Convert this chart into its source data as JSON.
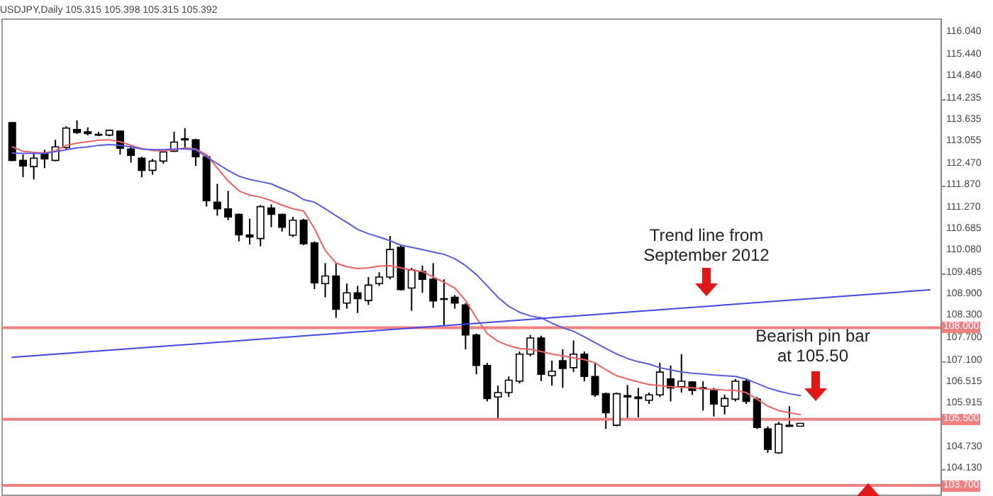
{
  "chart_data": {
    "type": "candlestick",
    "title": "USDJPY,Daily  105.315 105.398 105.315 105.392",
    "categories": [
      null,
      null,
      null,
      null,
      null,
      null,
      null,
      null,
      null,
      null,
      null,
      null,
      null,
      null,
      null,
      null,
      null,
      null,
      null,
      null,
      null,
      null,
      null,
      null,
      null,
      null,
      null,
      null,
      null,
      null,
      null,
      null,
      null,
      null,
      null,
      null,
      null,
      null,
      null,
      null,
      null,
      null,
      null,
      null,
      null,
      null,
      null,
      null,
      null,
      null,
      null,
      null,
      null,
      null,
      null,
      null,
      null,
      null,
      null,
      null,
      null,
      null,
      null,
      null,
      null,
      null,
      null,
      null,
      null,
      null,
      null,
      null,
      null,
      null,
      null,
      null,
      null,
      null,
      null,
      null,
      null,
      null,
      null,
      null,
      null,
      null
    ],
    "ohlc": [
      [
        113.59,
        113.59,
        112.54,
        112.56
      ],
      [
        112.56,
        112.72,
        112.1,
        112.41
      ],
      [
        112.39,
        112.75,
        112.04,
        112.62
      ],
      [
        112.75,
        112.85,
        112.35,
        112.6
      ],
      [
        112.56,
        113.12,
        112.54,
        112.93
      ],
      [
        112.91,
        113.49,
        112.87,
        113.44
      ],
      [
        113.4,
        113.65,
        113.28,
        113.32
      ],
      [
        113.34,
        113.46,
        113.24,
        113.29
      ],
      [
        113.27,
        113.34,
        113.22,
        113.25
      ],
      [
        113.25,
        113.4,
        113.22,
        113.38
      ],
      [
        113.36,
        113.36,
        112.72,
        112.89
      ],
      [
        112.87,
        112.97,
        112.5,
        112.7
      ],
      [
        112.62,
        112.66,
        112.1,
        112.29
      ],
      [
        112.29,
        112.6,
        112.17,
        112.54
      ],
      [
        112.54,
        112.85,
        112.47,
        112.79
      ],
      [
        112.81,
        113.34,
        112.79,
        113.06
      ],
      [
        113.15,
        113.44,
        112.91,
        113.12
      ],
      [
        113.12,
        113.15,
        112.41,
        112.66
      ],
      [
        112.66,
        112.72,
        111.3,
        111.46
      ],
      [
        111.42,
        111.92,
        111.05,
        111.24
      ],
      [
        111.24,
        111.73,
        110.93,
        111.02
      ],
      [
        111.09,
        111.11,
        110.35,
        110.53
      ],
      [
        110.53,
        110.97,
        110.27,
        110.47
      ],
      [
        110.43,
        111.34,
        110.22,
        111.3
      ],
      [
        111.26,
        111.36,
        110.74,
        111.09
      ],
      [
        111.09,
        111.11,
        110.62,
        110.74
      ],
      [
        110.52,
        111.02,
        110.47,
        110.93
      ],
      [
        110.93,
        110.97,
        110.25,
        110.29
      ],
      [
        110.31,
        110.35,
        109.05,
        109.22
      ],
      [
        109.2,
        109.76,
        108.83,
        109.41
      ],
      [
        109.41,
        109.76,
        108.27,
        108.5
      ],
      [
        108.67,
        109.2,
        108.52,
        108.95
      ],
      [
        108.95,
        109.14,
        108.4,
        108.79
      ],
      [
        108.74,
        109.38,
        108.62,
        109.16
      ],
      [
        109.2,
        109.51,
        109.14,
        109.38
      ],
      [
        109.38,
        110.5,
        109.32,
        110.13
      ],
      [
        110.19,
        110.25,
        109.01,
        109.04
      ],
      [
        109.08,
        109.63,
        108.46,
        109.57
      ],
      [
        109.53,
        109.69,
        108.95,
        109.32
      ],
      [
        109.32,
        109.76,
        108.54,
        108.73
      ],
      [
        108.79,
        109.32,
        108.05,
        108.77
      ],
      [
        108.83,
        108.89,
        108.52,
        108.67
      ],
      [
        108.62,
        108.67,
        107.41,
        107.8
      ],
      [
        107.8,
        107.84,
        106.73,
        106.97
      ],
      [
        106.97,
        107.04,
        105.99,
        106.07
      ],
      [
        106.11,
        106.42,
        105.49,
        106.23
      ],
      [
        106.23,
        106.67,
        106.11,
        106.57
      ],
      [
        106.54,
        107.35,
        106.48,
        107.28
      ],
      [
        107.28,
        107.8,
        107.22,
        107.72
      ],
      [
        107.72,
        107.78,
        106.54,
        106.73
      ],
      [
        106.69,
        107.1,
        106.42,
        106.81
      ],
      [
        107.1,
        107.41,
        106.36,
        106.89
      ],
      [
        106.91,
        107.65,
        106.79,
        107.28
      ],
      [
        107.28,
        107.35,
        106.54,
        106.67
      ],
      [
        106.67,
        107.04,
        106.11,
        106.17
      ],
      [
        106.2,
        106.23,
        105.24,
        105.68
      ],
      [
        105.34,
        106.23,
        105.31,
        106.2
      ],
      [
        106.15,
        106.44,
        105.49,
        106.11
      ],
      [
        106.11,
        106.36,
        105.55,
        106.07
      ],
      [
        106.02,
        106.23,
        105.92,
        106.17
      ],
      [
        106.17,
        107.04,
        106.11,
        106.79
      ],
      [
        106.6,
        106.97,
        105.99,
        106.36
      ],
      [
        106.39,
        107.28,
        106.23,
        106.54
      ],
      [
        106.52,
        106.54,
        106.17,
        106.29
      ],
      [
        106.36,
        106.54,
        105.74,
        106.33
      ],
      [
        106.29,
        106.36,
        105.58,
        105.92
      ],
      [
        105.86,
        106.17,
        105.63,
        106.07
      ],
      [
        106.05,
        106.6,
        105.99,
        106.54
      ],
      [
        106.54,
        106.6,
        105.92,
        105.99
      ],
      [
        106.05,
        106.11,
        105.24,
        105.28
      ],
      [
        105.24,
        105.31,
        104.59,
        104.68
      ],
      [
        104.59,
        105.43,
        104.56,
        105.37
      ],
      [
        105.34,
        105.86,
        105.31,
        105.31
      ],
      [
        105.315,
        105.398,
        105.315,
        105.392
      ],
      null,
      null,
      null,
      null,
      null,
      null,
      null,
      null,
      null,
      null,
      null,
      null
    ],
    "series": [
      {
        "type": "line",
        "color": "#f06060",
        "values": [
          112.93,
          112.81,
          112.78,
          112.76,
          112.82,
          112.97,
          113.03,
          113.07,
          113.11,
          113.12,
          113.07,
          112.97,
          112.88,
          112.83,
          112.82,
          112.85,
          112.9,
          112.87,
          112.72,
          112.35,
          112.0,
          111.73,
          111.61,
          111.56,
          111.46,
          111.34,
          111.24,
          111.18,
          110.7,
          110.1,
          109.76,
          109.66,
          109.61,
          109.63,
          109.68,
          109.69,
          109.63,
          109.57,
          109.53,
          109.38,
          109.24,
          109.08,
          108.74,
          108.27,
          107.84,
          107.63,
          107.51,
          107.43,
          107.41,
          107.35,
          107.28,
          107.23,
          107.18,
          107.13,
          107.04,
          106.85,
          106.69,
          106.6,
          106.52,
          106.45,
          106.42,
          106.39,
          106.37,
          106.36,
          106.33,
          106.32,
          106.3,
          106.29,
          106.23,
          106.05,
          105.86,
          105.74,
          105.68,
          105.63,
          null,
          null,
          null,
          null,
          null,
          null,
          null,
          null,
          null,
          null,
          null,
          null
        ]
      },
      {
        "type": "line",
        "color": "#5a5ae6",
        "values": [
          112.76,
          112.75,
          112.75,
          112.75,
          112.8,
          112.85,
          112.9,
          112.93,
          112.97,
          112.99,
          112.97,
          112.93,
          112.87,
          112.85,
          112.85,
          112.87,
          112.87,
          112.85,
          112.66,
          112.47,
          112.29,
          112.13,
          112.04,
          111.98,
          111.92,
          111.79,
          111.67,
          111.49,
          111.42,
          111.24,
          111.05,
          110.87,
          110.68,
          110.56,
          110.47,
          110.37,
          110.25,
          110.19,
          110.13,
          110.06,
          110.0,
          109.88,
          109.69,
          109.45,
          109.14,
          108.83,
          108.58,
          108.42,
          108.32,
          108.27,
          108.12,
          108.0,
          107.9,
          107.75,
          107.59,
          107.43,
          107.28,
          107.16,
          107.07,
          107.01,
          106.91,
          106.85,
          106.79,
          106.76,
          106.74,
          106.71,
          106.69,
          106.67,
          106.6,
          106.48,
          106.36,
          106.27,
          106.2,
          106.15,
          null,
          null,
          null,
          null,
          null,
          null,
          null,
          null,
          null,
          null,
          null,
          null
        ]
      },
      {
        "type": "line",
        "color": "#4646e6",
        "values": [
          107.19,
          null,
          null,
          null,
          null,
          null,
          null,
          null,
          null,
          null,
          null,
          null,
          null,
          null,
          null,
          null,
          null,
          null,
          null,
          null,
          null,
          null,
          null,
          null,
          null,
          null,
          null,
          null,
          null,
          null,
          null,
          null,
          null,
          null,
          null,
          null,
          null,
          null,
          null,
          null,
          null,
          null,
          null,
          null,
          null,
          null,
          null,
          null,
          null,
          null,
          null,
          null,
          null,
          null,
          null,
          null,
          null,
          null,
          null,
          null,
          null,
          null,
          null,
          null,
          null,
          null,
          null,
          null,
          null,
          null,
          null,
          null,
          null,
          null,
          null,
          null,
          null,
          null,
          null,
          null,
          null,
          null,
          null,
          null,
          null,
          109.03
        ]
      }
    ],
    "ylim": [
      103.45,
      116.43
    ],
    "yticks": [
      {
        "value": 116.04,
        "label": "116.040"
      },
      {
        "value": 115.44,
        "label": "115.440"
      },
      {
        "value": 114.84,
        "label": "114.840"
      },
      {
        "value": 114.235,
        "label": "114.235"
      },
      {
        "value": 113.635,
        "label": "113.635"
      },
      {
        "value": 113.055,
        "label": "113.055"
      },
      {
        "value": 112.47,
        "label": "112.470"
      },
      {
        "value": 111.87,
        "label": "111.870"
      },
      {
        "value": 111.27,
        "label": "111.270"
      },
      {
        "value": 110.685,
        "label": "110.685"
      },
      {
        "value": 110.08,
        "label": "110.080"
      },
      {
        "value": 109.485,
        "label": "109.485"
      },
      {
        "value": 108.9,
        "label": "108.900"
      },
      {
        "value": 108.3,
        "label": "108.300"
      },
      {
        "value": 107.7,
        "label": "107.700"
      },
      {
        "value": 107.1,
        "label": "107.100"
      },
      {
        "value": 106.515,
        "label": "106.515"
      },
      {
        "value": 105.915,
        "label": "105.915"
      },
      {
        "value": 104.73,
        "label": "104.730"
      },
      {
        "value": 104.13,
        "label": "104.130"
      }
    ],
    "ref_lines": [
      {
        "axis": "y",
        "value": 108.0,
        "label": "108.000",
        "color": "#f08080"
      },
      {
        "axis": "y",
        "value": 105.5,
        "label": "105.500",
        "color": "#f08080"
      },
      {
        "axis": "y",
        "value": 103.7,
        "label": "103.700",
        "color": "#f08080"
      }
    ],
    "annotations": [
      "Trend line from September 2012",
      "Bearish pin bar at 105.50"
    ],
    "tick_labels": "y"
  }
}
